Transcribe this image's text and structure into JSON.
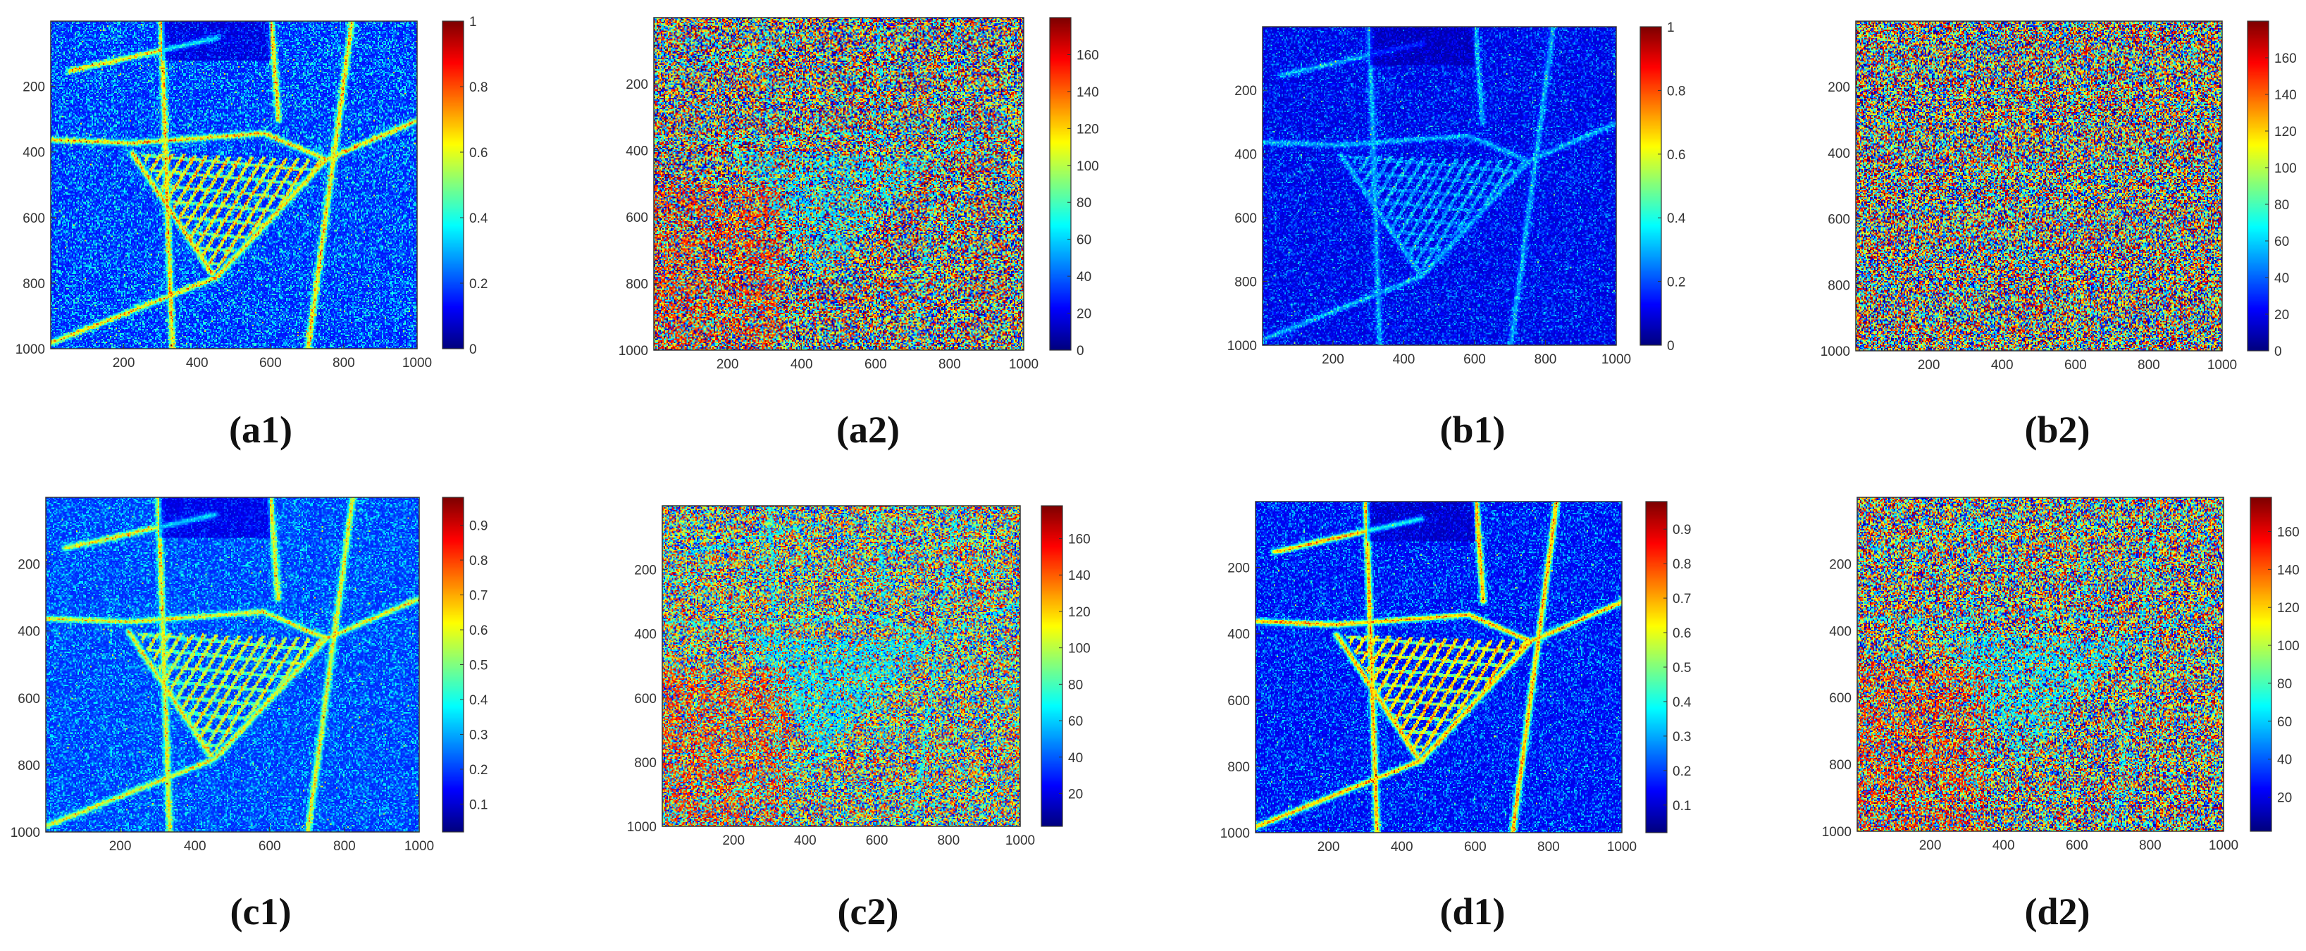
{
  "colors": {
    "colormap": "jet",
    "frame": "#333333",
    "text": "#333333",
    "background": "#ffffff"
  },
  "chart_data": [
    {
      "type": "heatmap",
      "caption": "(a1)",
      "colormap": "jet",
      "xlim": [
        1,
        1000
      ],
      "ylim": [
        1,
        1000
      ],
      "xticks": [
        "200",
        "400",
        "600",
        "800",
        "1000"
      ],
      "yticks": [
        "200",
        "400",
        "600",
        "800",
        "1000"
      ],
      "colorbar": {
        "min": 0,
        "max": 1,
        "ticks": [
          "0",
          "0.2",
          "0.4",
          "0.6",
          "0.8",
          "1"
        ]
      },
      "pattern": "coherence",
      "level": 0.14,
      "noise": 0.1,
      "line_strength": 0.45,
      "seed": 11
    },
    {
      "type": "heatmap",
      "caption": "(a2)",
      "colormap": "jet",
      "xlim": [
        1,
        1000
      ],
      "ylim": [
        1,
        1000
      ],
      "xticks": [
        "200",
        "400",
        "600",
        "800",
        "1000"
      ],
      "yticks": [
        "200",
        "400",
        "600",
        "800",
        "1000"
      ],
      "colorbar": {
        "min": 0,
        "max": 180,
        "ticks": [
          "0",
          "20",
          "40",
          "60",
          "80",
          "100",
          "120",
          "140",
          "160"
        ]
      },
      "pattern": "angle",
      "level": 0.5,
      "noise": 1.0,
      "line_strength": 0.3,
      "seed": 23
    },
    {
      "type": "heatmap",
      "caption": "(b1)",
      "colormap": "jet",
      "xlim": [
        1,
        1000
      ],
      "ylim": [
        1,
        1000
      ],
      "xticks": [
        "200",
        "400",
        "600",
        "800",
        "1000"
      ],
      "yticks": [
        "200",
        "400",
        "600",
        "800",
        "1000"
      ],
      "colorbar": {
        "min": 0,
        "max": 1,
        "ticks": [
          "0",
          "0.2",
          "0.4",
          "0.6",
          "0.8",
          "1"
        ]
      },
      "pattern": "coherence",
      "level": 0.08,
      "noise": 0.07,
      "line_strength": 0.18,
      "seed": 37
    },
    {
      "type": "heatmap",
      "caption": "(b2)",
      "colormap": "jet",
      "xlim": [
        1,
        1000
      ],
      "ylim": [
        1,
        1000
      ],
      "xticks": [
        "200",
        "400",
        "600",
        "800",
        "1000"
      ],
      "yticks": [
        "200",
        "400",
        "600",
        "800",
        "1000"
      ],
      "colorbar": {
        "min": 0,
        "max": 180,
        "ticks": [
          "0",
          "20",
          "40",
          "60",
          "80",
          "100",
          "120",
          "140",
          "160"
        ]
      },
      "pattern": "angle",
      "level": 0.5,
      "noise": 1.0,
      "line_strength": 0.05,
      "seed": 41
    },
    {
      "type": "heatmap",
      "caption": "(c1)",
      "colormap": "jet",
      "xlim": [
        1,
        1000
      ],
      "ylim": [
        1,
        1000
      ],
      "xticks": [
        "200",
        "400",
        "600",
        "800",
        "1000"
      ],
      "yticks": [
        "200",
        "400",
        "600",
        "800",
        "1000"
      ],
      "colorbar": {
        "min": 0.02,
        "max": 0.98,
        "ticks": [
          "0.1",
          "0.2",
          "0.3",
          "0.4",
          "0.5",
          "0.6",
          "0.7",
          "0.8",
          "0.9"
        ]
      },
      "pattern": "coherence",
      "level": 0.16,
      "noise": 0.08,
      "line_strength": 0.4,
      "seed": 53
    },
    {
      "type": "heatmap",
      "caption": "(c2)",
      "colormap": "jet",
      "xlim": [
        1,
        1000
      ],
      "ylim": [
        1,
        1000
      ],
      "xticks": [
        "200",
        "400",
        "600",
        "800",
        "1000"
      ],
      "yticks": [
        "200",
        "400",
        "600",
        "800",
        "1000"
      ],
      "colorbar": {
        "min": 2,
        "max": 178,
        "ticks": [
          "20",
          "40",
          "60",
          "80",
          "100",
          "120",
          "140",
          "160"
        ]
      },
      "pattern": "angle",
      "level": 0.5,
      "noise": 0.85,
      "line_strength": 0.45,
      "seed": 67
    },
    {
      "type": "heatmap",
      "caption": "(d1)",
      "colormap": "jet",
      "xlim": [
        1,
        1000
      ],
      "ylim": [
        1,
        1000
      ],
      "xticks": [
        "200",
        "400",
        "600",
        "800",
        "1000"
      ],
      "yticks": [
        "200",
        "400",
        "600",
        "800",
        "1000"
      ],
      "colorbar": {
        "min": 0.02,
        "max": 0.98,
        "ticks": [
          "0.1",
          "0.2",
          "0.3",
          "0.4",
          "0.5",
          "0.6",
          "0.7",
          "0.8",
          "0.9"
        ]
      },
      "pattern": "coherence",
      "level": 0.1,
      "noise": 0.08,
      "line_strength": 0.55,
      "seed": 71
    },
    {
      "type": "heatmap",
      "caption": "(d2)",
      "colormap": "jet",
      "xlim": [
        1,
        1000
      ],
      "ylim": [
        1,
        1000
      ],
      "xticks": [
        "200",
        "400",
        "600",
        "800",
        "1000"
      ],
      "yticks": [
        "200",
        "400",
        "600",
        "800",
        "1000"
      ],
      "colorbar": {
        "min": 2,
        "max": 178,
        "ticks": [
          "20",
          "40",
          "60",
          "80",
          "100",
          "120",
          "140",
          "160"
        ]
      },
      "pattern": "angle",
      "level": 0.5,
      "noise": 0.95,
      "line_strength": 0.35,
      "seed": 83
    }
  ]
}
